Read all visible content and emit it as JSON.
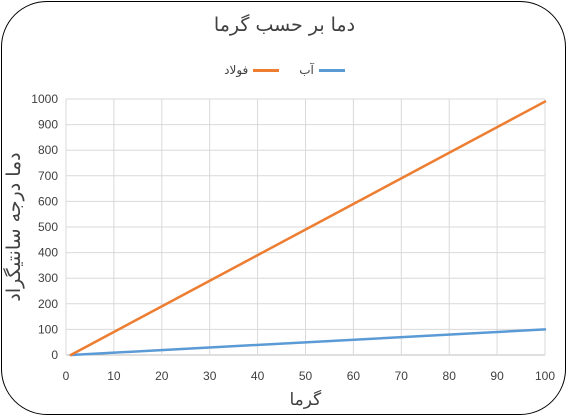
{
  "chart_data": {
    "type": "line",
    "title": "دما بر حسب گرما",
    "xlabel": "گرما",
    "ylabel": "دما درجه سانتیگراد",
    "x": [
      1,
      100
    ],
    "xlim": [
      0,
      100
    ],
    "ylim": [
      0,
      1000
    ],
    "x_ticks": [
      "0",
      "10",
      "20",
      "30",
      "40",
      "50",
      "60",
      "70",
      "80",
      "90",
      "100"
    ],
    "y_ticks": [
      "0",
      "100",
      "200",
      "300",
      "400",
      "500",
      "600",
      "700",
      "800",
      "900",
      "1000"
    ],
    "grid": true,
    "legend_position": "top",
    "series": [
      {
        "name": "آب",
        "color": "#5B9BD5",
        "x": [
          1,
          100
        ],
        "values": [
          0,
          100
        ]
      },
      {
        "name": "فولاد",
        "color": "#ED7D31",
        "x": [
          1,
          100
        ],
        "values": [
          0,
          990
        ]
      }
    ]
  }
}
